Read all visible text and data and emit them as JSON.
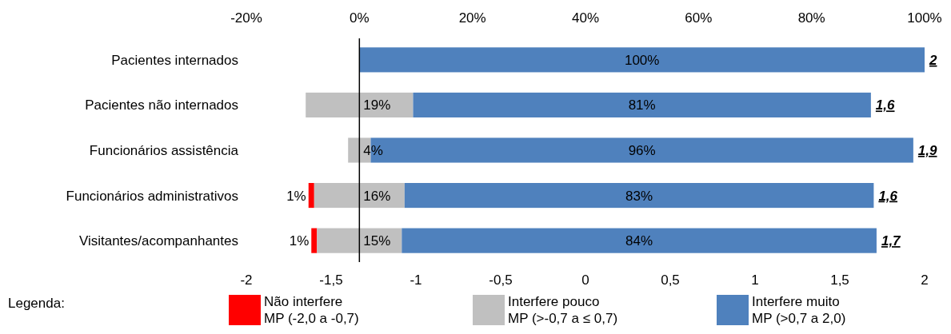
{
  "chart_data": {
    "type": "bar",
    "orientation": "horizontal",
    "categories": [
      "Pacientes internados",
      "Pacientes não internados",
      "Funcionários assistência",
      "Funcionários administrativos",
      "Visitantes/acompanhantes"
    ],
    "series": [
      {
        "name": "Não interfere\nMP (-2,0 a -0,7)",
        "color": "#ff0000",
        "base": [
          null,
          null,
          null,
          -9,
          -8.5
        ],
        "values": [
          null,
          null,
          null,
          1,
          1
        ],
        "value_labels": [
          null,
          null,
          null,
          "1%",
          "1%"
        ]
      },
      {
        "name": "Interfere pouco\nMP (>-0,7 a ≤ 0,7)",
        "color": "#c0c0c0",
        "base": [
          null,
          -9.5,
          -2,
          -8,
          -7.5
        ],
        "values": [
          null,
          19,
          4,
          16,
          15
        ],
        "value_labels": [
          null,
          "19%",
          "4%",
          "16%",
          "15%"
        ]
      },
      {
        "name": "Interfere muito\nMP (>0,7 a 2,0)",
        "color": "#4f81bd",
        "base": [
          0,
          9.5,
          2,
          8,
          7.5
        ],
        "values": [
          100,
          81,
          96,
          83,
          84
        ],
        "value_labels": [
          "100%",
          "81%",
          "96%",
          "83%",
          "84%"
        ]
      }
    ],
    "xlim": [
      -20,
      100
    ],
    "xticks": [
      {
        "value": -20,
        "label": "-20%"
      },
      {
        "value": 0,
        "label": "0%"
      },
      {
        "value": 20,
        "label": "20%"
      },
      {
        "value": 40,
        "label": "40%"
      },
      {
        "value": 60,
        "label": "60%"
      },
      {
        "value": 80,
        "label": "80%"
      },
      {
        "value": 100,
        "label": "100%"
      }
    ],
    "x2lim": [
      -2,
      2
    ],
    "x2ticks": [
      -2,
      {
        "value": -1.5,
        "label": "-1,5"
      },
      -1,
      {
        "value": -0.5,
        "label": "-0,5"
      },
      0,
      {
        "value": 0.5,
        "label": "0,5"
      },
      1,
      {
        "value": 1.5,
        "label": "1,5"
      },
      2
    ],
    "ref_lines": [
      {
        "axis": "x",
        "value": 0
      }
    ],
    "annotations": [
      "2",
      "1,6",
      "1,9",
      "1,6",
      "1,7"
    ],
    "legend": "bottom",
    "legend_title": "Legenda:"
  }
}
